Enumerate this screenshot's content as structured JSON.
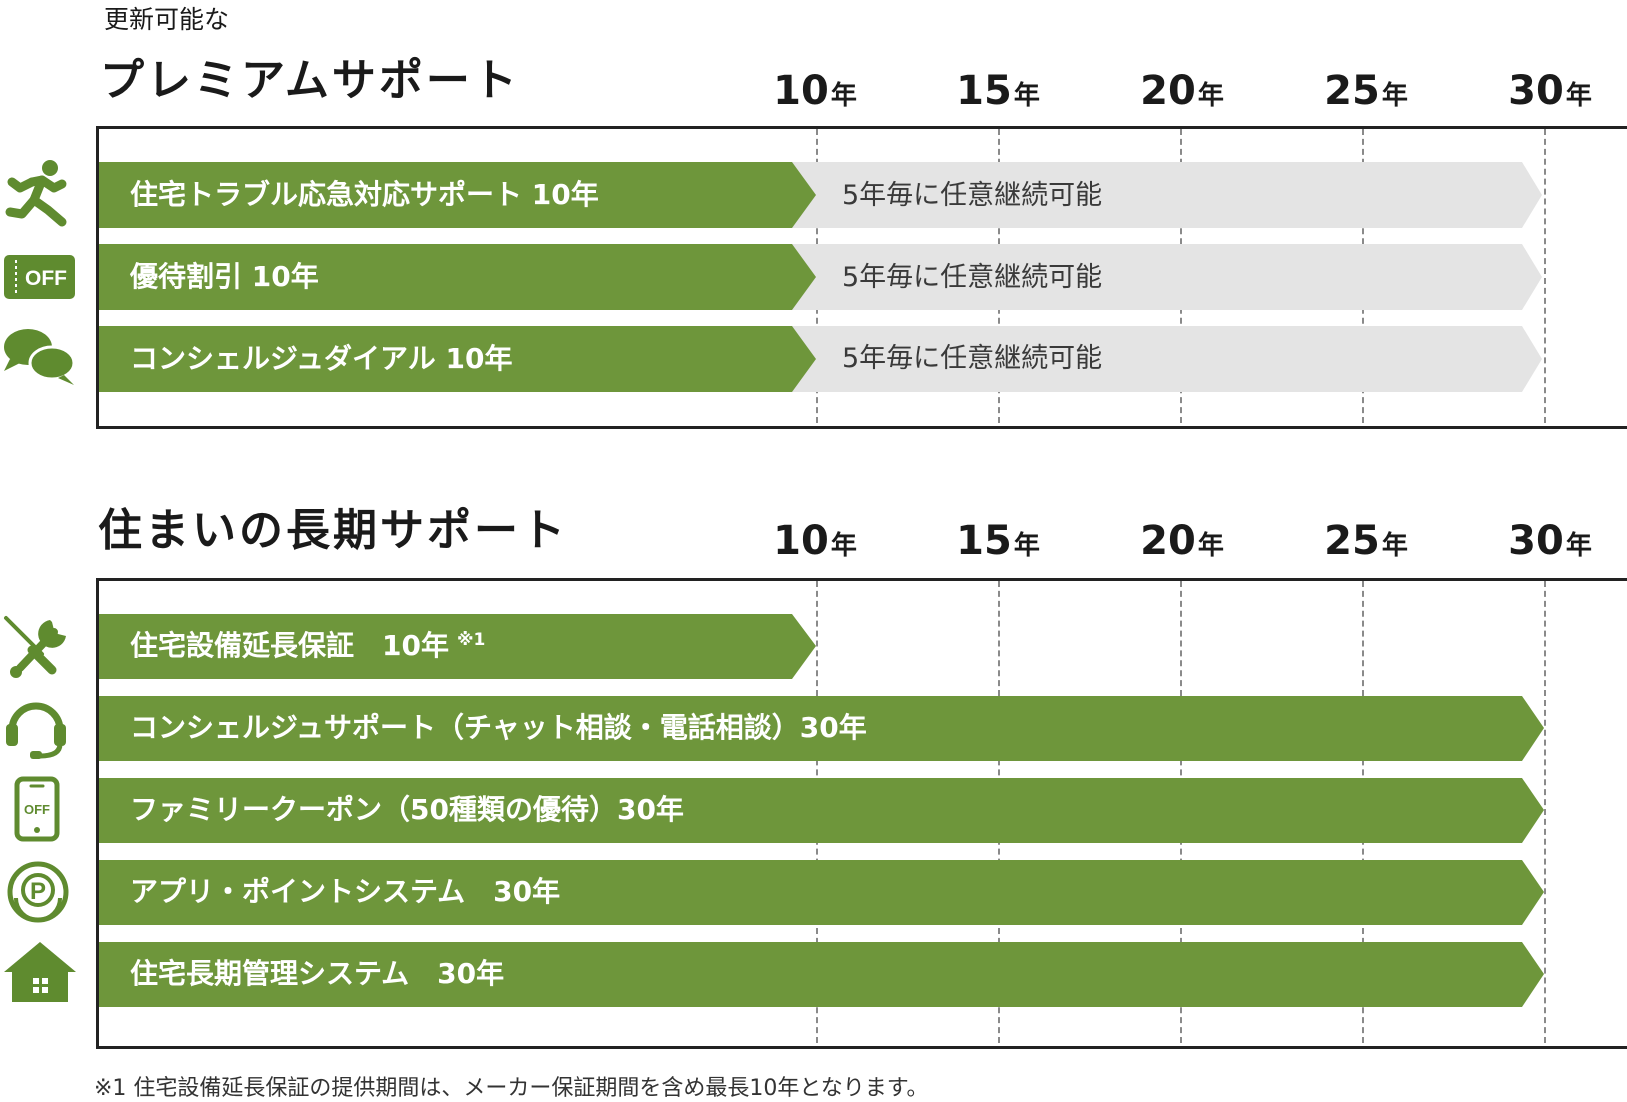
{
  "premium": {
    "subtitle": "更新可能な",
    "title": "プレミアムサポート",
    "years": [
      {
        "n": "10",
        "u": "年"
      },
      {
        "n": "15",
        "u": "年"
      },
      {
        "n": "20",
        "u": "年"
      },
      {
        "n": "25",
        "u": "年"
      },
      {
        "n": "30",
        "u": "年"
      }
    ],
    "rows": [
      {
        "label": "住宅トラブル応急対応サポート 10年",
        "extension": "5年毎に任意継続可能",
        "icon": "running-person-icon",
        "base_years": 10,
        "extended_to_years": 30
      },
      {
        "label": "優待割引 10年",
        "extension": "5年毎に任意継続可能",
        "icon": "off-coupon-icon",
        "icon_text": "OFF",
        "base_years": 10,
        "extended_to_years": 30
      },
      {
        "label": "コンシェルジュダイアル 10年",
        "extension": "5年毎に任意継続可能",
        "icon": "chat-bubbles-icon",
        "base_years": 10,
        "extended_to_years": 30
      }
    ]
  },
  "longterm": {
    "title": "住まいの長期サポート",
    "years": [
      {
        "n": "10",
        "u": "年"
      },
      {
        "n": "15",
        "u": "年"
      },
      {
        "n": "20",
        "u": "年"
      },
      {
        "n": "25",
        "u": "年"
      },
      {
        "n": "30",
        "u": "年"
      }
    ],
    "rows": [
      {
        "label": "住宅設備延長保証　10年",
        "note": "※1",
        "icon": "tools-icon",
        "years": 10
      },
      {
        "label": "コンシェルジュサポート（チャット相談・電話相談）30年",
        "icon": "headset-icon",
        "years": 30
      },
      {
        "label": "ファミリークーポン（50種類の優待）30年",
        "icon": "smartphone-off-icon",
        "icon_text": "OFF",
        "years": 30
      },
      {
        "label": "アプリ・ポイントシステム　30年",
        "icon": "point-coin-icon",
        "icon_text": "P",
        "years": 30
      },
      {
        "label": "住宅長期管理システム　30年",
        "icon": "house-icon",
        "years": 30
      }
    ]
  },
  "footnote": "※1 住宅設備延長保証の提供期間は、メーカー保証期間を含め最長10年となります。",
  "colors": {
    "bar_green": "#6e963b",
    "extension_gray": "#e4e4e4",
    "icon_green": "#5f8b2f",
    "frame": "#222222",
    "gridline": "#8a8a8a"
  }
}
